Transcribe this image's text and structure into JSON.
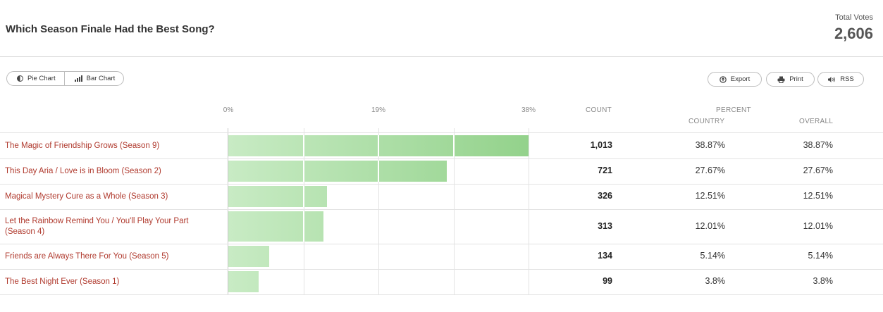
{
  "header": {
    "title": "Which Season Finale Had the Best Song?",
    "total_label": "Total Votes",
    "total_value": "2,606"
  },
  "toolbar": {
    "pie_label": "Pie Chart",
    "bar_label": "Bar Chart",
    "export_label": "Export",
    "print_label": "Print",
    "rss_label": "RSS"
  },
  "columns": {
    "count": "COUNT",
    "percent": "PERCENT",
    "country": "COUNTRY",
    "overall": "OVERALL"
  },
  "chart_data": {
    "type": "bar",
    "orientation": "horizontal",
    "axis_ticks": [
      "0%",
      "19%",
      "38%"
    ],
    "xlim": [
      0,
      38
    ],
    "categories": [
      "The Magic of Friendship Grows (Season 9)",
      "This Day Aria / Love is in Bloom (Season 2)",
      "Magical Mystery Cure as a Whole (Season 3)",
      "Let the Rainbow Remind You / You'll Play Your Part (Season 4)",
      "Friends are Always There For You (Season 5)",
      "The Best Night Ever (Season 1)"
    ],
    "values": [
      38.87,
      27.67,
      12.51,
      12.01,
      5.14,
      3.8
    ],
    "counts": [
      "1,013",
      "721",
      "326",
      "313",
      "134",
      "99"
    ],
    "percent_country": [
      "38.87%",
      "27.67%",
      "12.51%",
      "12.01%",
      "5.14%",
      "3.8%"
    ],
    "percent_overall": [
      "38.87%",
      "27.67%",
      "12.51%",
      "12.01%",
      "5.14%",
      "3.8%"
    ],
    "colors": {
      "bar_start": "#c8ebc4",
      "bar_end": "#93d28b",
      "label": "#b03a2e"
    }
  }
}
